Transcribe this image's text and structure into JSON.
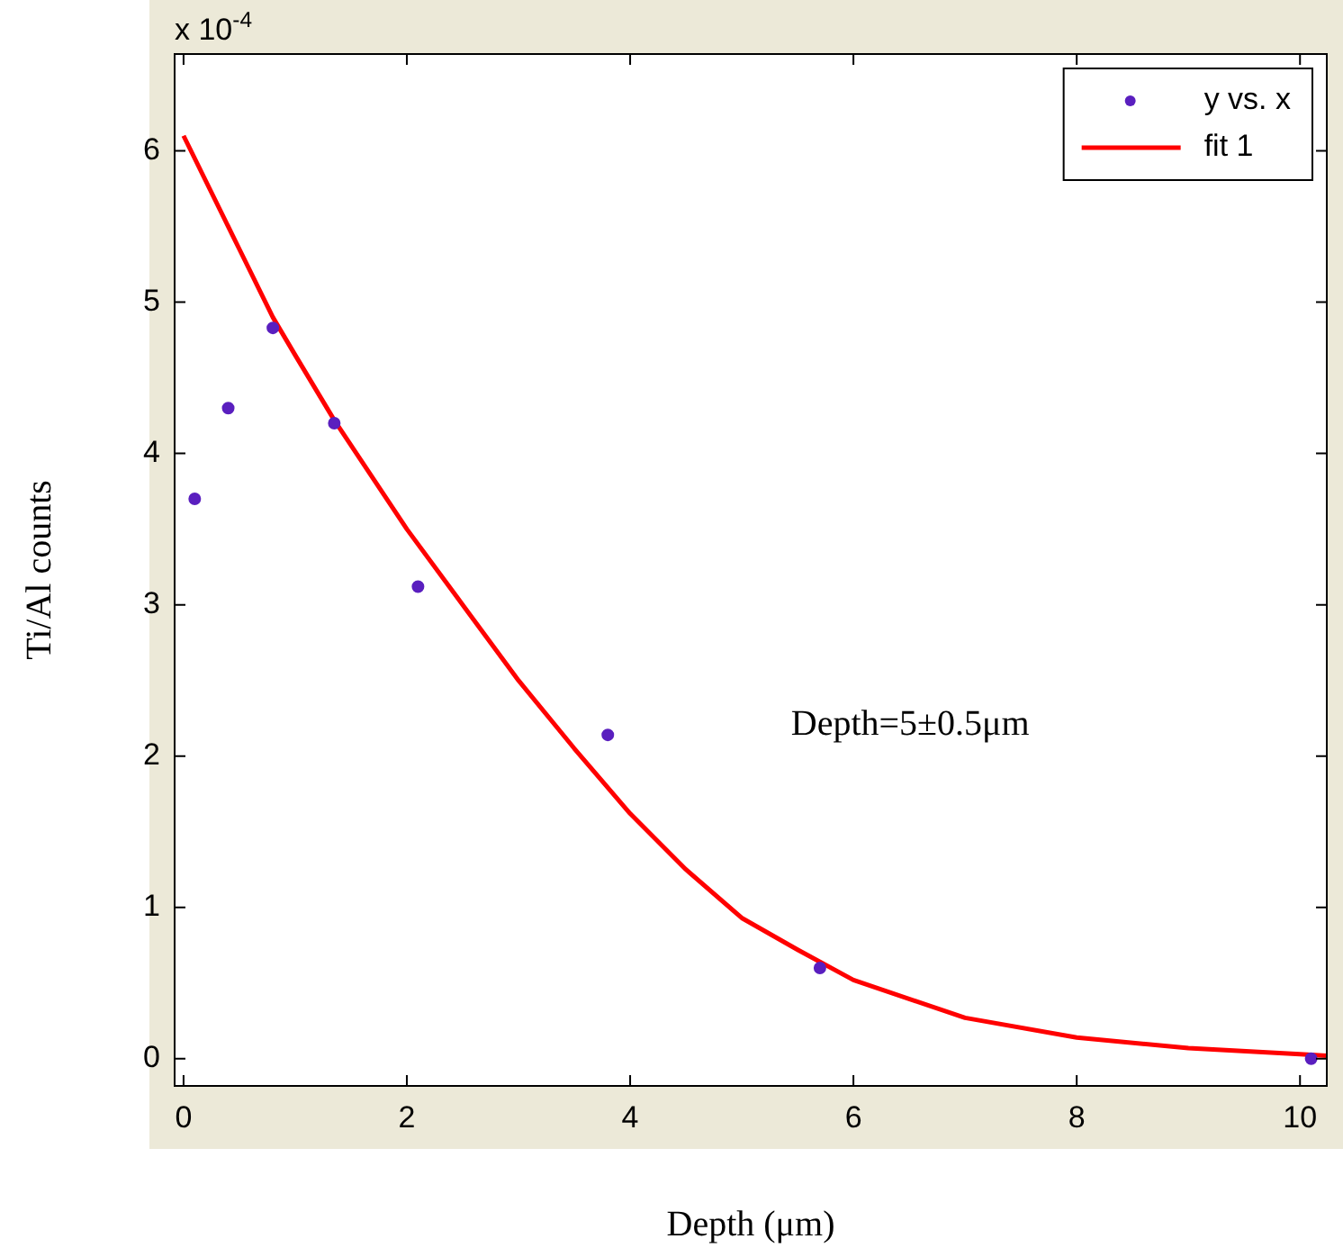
{
  "chart_data": {
    "type": "scatter",
    "xlabel": "Depth (μm)",
    "ylabel": "Ti/Al counts",
    "annotations": [
      "x 10$^{-4}$",
      "Depth=5±0.5μm"
    ],
    "xlim": [
      -0.08,
      10.24
    ],
    "xticks": [
      0,
      2,
      4,
      6,
      8,
      10
    ],
    "ylim": [
      -0.18,
      6.64
    ],
    "yticks": [
      0,
      1,
      2,
      3,
      4,
      5,
      6
    ],
    "grid": false,
    "legend": "top right",
    "series": [
      {
        "name": "y vs. x",
        "marker": "circle",
        "color": "#5a1fbf",
        "x": [
          0.1,
          0.4,
          0.8,
          1.35,
          2.1,
          3.8,
          5.7,
          10.1
        ],
        "values": [
          3.7,
          4.3,
          4.83,
          4.2,
          3.12,
          2.14,
          0.6,
          0
        ]
      },
      {
        "name": "fit 1",
        "type": "line",
        "marker": "none",
        "color": "#ff0000",
        "x": [
          0,
          0.5,
          0.8,
          1,
          1.35,
          2,
          2.5,
          3,
          3.5,
          4,
          4.5,
          5,
          5.5,
          6,
          7,
          8,
          9,
          10,
          10.24
        ],
        "values": [
          6.1,
          5.35,
          4.9,
          4.65,
          4.22,
          3.5,
          3.0,
          2.5,
          2.05,
          1.62,
          1.25,
          0.93,
          0.72,
          0.52,
          0.27,
          0.14,
          0.07,
          0.03,
          0.02
        ]
      }
    ]
  }
}
